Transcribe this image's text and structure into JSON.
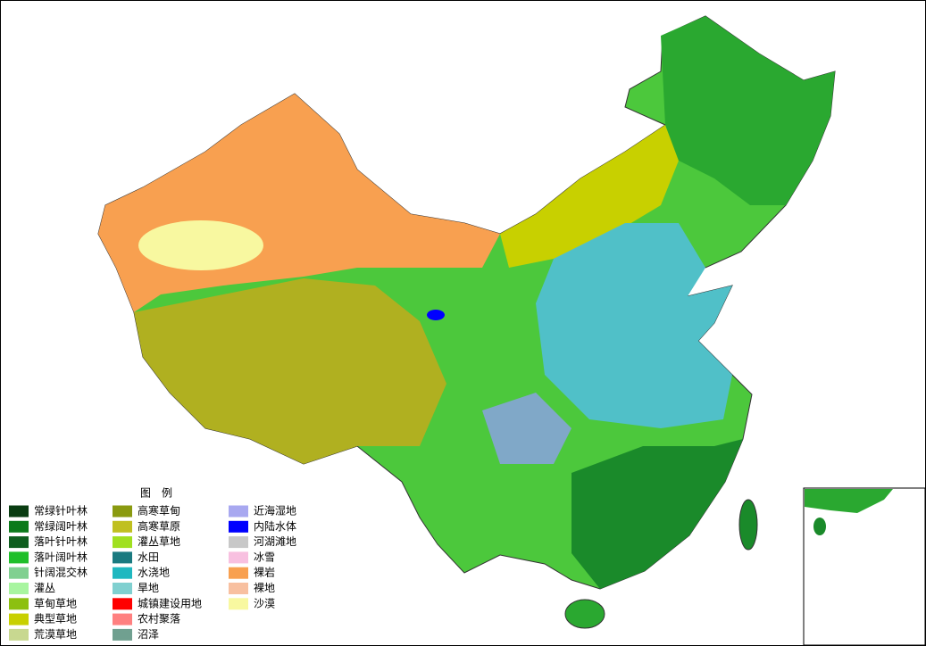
{
  "legend": {
    "title": "图　例",
    "items": [
      {
        "label": "常绿针叶林",
        "color": "#0a3d12"
      },
      {
        "label": "常绿阔叶林",
        "color": "#0b7a1a"
      },
      {
        "label": "落叶针叶林",
        "color": "#0e5e1e"
      },
      {
        "label": "落叶阔叶林",
        "color": "#1fbf2a"
      },
      {
        "label": "针阔混交林",
        "color": "#80d090"
      },
      {
        "label": "灌丛",
        "color": "#a8f5a0"
      },
      {
        "label": "草甸草地",
        "color": "#8cc010"
      },
      {
        "label": "典型草地",
        "color": "#c8d000"
      },
      {
        "label": "荒漠草地",
        "color": "#c8d890"
      },
      {
        "label": "高寒草甸",
        "color": "#8a9a10"
      },
      {
        "label": "高寒草原",
        "color": "#c0c020"
      },
      {
        "label": "灌丛草地",
        "color": "#a0e020"
      },
      {
        "label": "水田",
        "color": "#1a7a80"
      },
      {
        "label": "水浇地",
        "color": "#20b8c0"
      },
      {
        "label": "旱地",
        "color": "#80d0d0"
      },
      {
        "label": "城镇建设用地",
        "color": "#ff0000"
      },
      {
        "label": "农村聚落",
        "color": "#ff8080"
      },
      {
        "label": "沼泽",
        "color": "#70a090"
      },
      {
        "label": "近海湿地",
        "color": "#a8a8f0"
      },
      {
        "label": "内陆水体",
        "color": "#0000ff"
      },
      {
        "label": "河湖滩地",
        "color": "#c8c8c8"
      },
      {
        "label": "冰雪",
        "color": "#f8c0e0"
      },
      {
        "label": "裸岩",
        "color": "#f8a050"
      },
      {
        "label": "裸地",
        "color": "#f8c0a0"
      },
      {
        "label": "沙漠",
        "color": "#f8f8a0"
      }
    ]
  }
}
